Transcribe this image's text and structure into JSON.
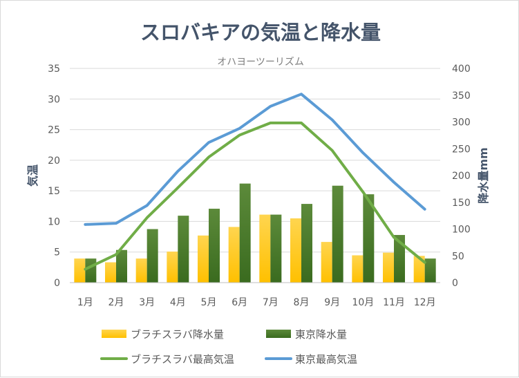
{
  "chart_data": {
    "type": "bar+line",
    "title": "スロバキアの気温と降水量",
    "subtitle": "オハヨーツーリズム",
    "categories": [
      "1月",
      "2月",
      "3月",
      "4月",
      "5月",
      "6月",
      "7月",
      "8月",
      "9月",
      "10月",
      "11月",
      "12月"
    ],
    "y_left": {
      "label": "気温",
      "range": [
        0,
        35
      ],
      "ticks": [
        "0",
        "5",
        "10",
        "15",
        "20",
        "25",
        "30",
        "35"
      ]
    },
    "y_right": {
      "label": "降水量mm",
      "range": [
        0,
        400
      ],
      "ticks": [
        "0",
        "50",
        "100",
        "150",
        "200",
        "250",
        "300",
        "350",
        "400"
      ]
    },
    "series": [
      {
        "name": "ブラチスラバ降水量",
        "type": "bar",
        "axis": "right",
        "color": "#FFC000",
        "values": [
          45,
          38,
          45,
          58,
          88,
          104,
          127,
          120,
          76,
          51,
          56,
          50
        ]
      },
      {
        "name": "東京降水量",
        "type": "bar",
        "axis": "right",
        "color": "#3A6B1F",
        "values": [
          45,
          61,
          100,
          125,
          138,
          185,
          127,
          147,
          181,
          165,
          89,
          45
        ]
      },
      {
        "name": "ブラチスラバ最高気温",
        "type": "line",
        "axis": "left",
        "color": "#70AD47",
        "values": [
          2.2,
          4.6,
          10.6,
          15.5,
          20.5,
          24.1,
          26.1,
          26.1,
          21.6,
          14.8,
          7.4,
          3.3
        ]
      },
      {
        "name": "東京最高気温",
        "type": "line",
        "axis": "left",
        "color": "#5B9BD5",
        "values": [
          9.5,
          9.7,
          12.6,
          18.2,
          22.9,
          25.2,
          28.8,
          30.8,
          26.6,
          21.2,
          16.4,
          12.0
        ]
      }
    ],
    "grid": "horizontal",
    "legend": "bottom"
  }
}
